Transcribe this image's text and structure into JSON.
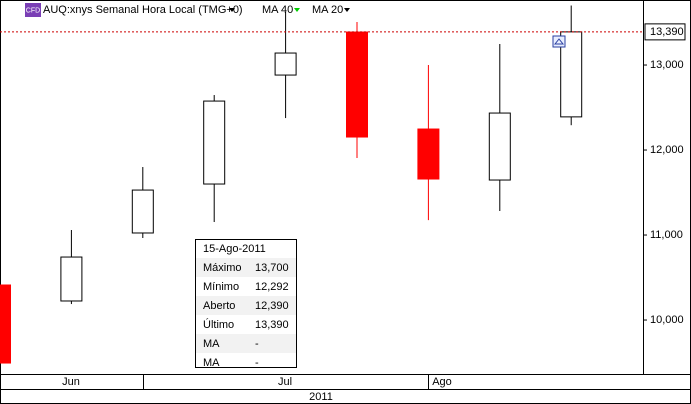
{
  "chart_data": {
    "type": "candlestick",
    "title": "AUQ:xnys Semanal Hora Local (TMG+0)",
    "badge": "CFD",
    "indicators": [
      {
        "name": "MA 40",
        "color": "#00cc00"
      },
      {
        "name": "MA 20",
        "color": "#000000"
      }
    ],
    "categories": [
      null,
      null,
      null,
      null,
      null,
      null,
      null,
      null,
      null
    ],
    "open": [
      10412,
      10224,
      11024,
      11600,
      12882,
      13388,
      12247,
      11647,
      12390
    ],
    "high": [
      10412,
      11059,
      11800,
      12647,
      13624,
      13506,
      13000,
      13247,
      13700
    ],
    "low": [
      9494,
      10188,
      10965,
      11153,
      12376,
      11906,
      11176,
      11282,
      12292
    ],
    "close": [
      9494,
      10741,
      11529,
      12576,
      13141,
      12153,
      11659,
      12435,
      13390
    ],
    "up_color": "#ffffff",
    "down_color": "#ff0000",
    "ylim": [
      9365,
      13765
    ],
    "yticks": [
      {
        "value": 10000,
        "label": "10,000"
      },
      {
        "value": 11000,
        "label": "11,000"
      },
      {
        "value": 12000,
        "label": "12,000"
      },
      {
        "value": 13000,
        "label": "13,000"
      }
    ],
    "last_price": {
      "value": 13390,
      "label": "13,390"
    },
    "months": [
      "Jun",
      "Jul",
      "Ago"
    ],
    "year": "2011",
    "tooltip": {
      "date": "15-Ago-2011",
      "rows": [
        [
          "Máximo",
          "13,700"
        ],
        [
          "Mínimo",
          "12,292"
        ],
        [
          "Aberto",
          "12,390"
        ],
        [
          "Último",
          "13,390"
        ],
        [
          "MA",
          "-"
        ],
        [
          "MA",
          "-"
        ]
      ]
    }
  }
}
